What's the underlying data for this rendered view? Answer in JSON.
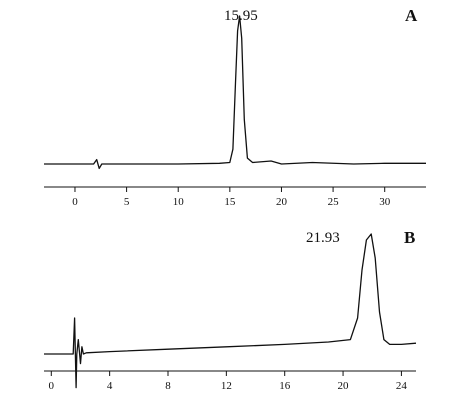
{
  "chart_data": [
    {
      "type": "line",
      "panel_label": "A",
      "xlim": [
        -3,
        34
      ],
      "x_ticks": [
        0,
        5,
        10,
        15,
        20,
        25,
        30
      ],
      "tick_labels": [
        "0",
        "5",
        "10",
        "15",
        "20",
        "25",
        "30"
      ],
      "peak_annotation": "15.95",
      "series": [
        {
          "x": [
            -3,
            1.8,
            2.1,
            2.35,
            2.6,
            5,
            10,
            14,
            15.0,
            15.3,
            15.55,
            15.75,
            15.95,
            16.15,
            16.4,
            16.7,
            17.2,
            19.0,
            20.0,
            23.0,
            27.0,
            30.0,
            34.0
          ],
          "y": [
            0,
            0.0,
            0.03,
            -0.03,
            0.0,
            0.0,
            0.0,
            0.005,
            0.01,
            0.1,
            0.55,
            0.9,
            1.0,
            0.85,
            0.3,
            0.04,
            0.01,
            0.02,
            0.0,
            0.01,
            0.0,
            0.005,
            0.005
          ]
        }
      ]
    },
    {
      "type": "line",
      "panel_label": "B",
      "xlim": [
        -0.5,
        25
      ],
      "x_ticks": [
        0,
        4,
        8,
        12,
        16,
        20,
        24
      ],
      "tick_labels": [
        "0",
        "4",
        "8",
        "12",
        "16",
        "20",
        "24"
      ],
      "peak_annotation": "21.93",
      "series": [
        {
          "x": [
            -0.5,
            1.5,
            1.6,
            1.7,
            1.75,
            1.85,
            2.0,
            2.1,
            2.2,
            2.4,
            4,
            8,
            12,
            16,
            19,
            20.5,
            21.0,
            21.3,
            21.6,
            21.93,
            22.2,
            22.5,
            22.8,
            23.2,
            24,
            25
          ],
          "y": [
            0,
            0.0,
            0.3,
            -0.28,
            0.0,
            0.12,
            -0.08,
            0.06,
            0.0,
            0.01,
            0.02,
            0.04,
            0.06,
            0.08,
            0.1,
            0.12,
            0.3,
            0.7,
            0.95,
            1.0,
            0.8,
            0.35,
            0.12,
            0.08,
            0.08,
            0.09
          ]
        }
      ]
    }
  ]
}
